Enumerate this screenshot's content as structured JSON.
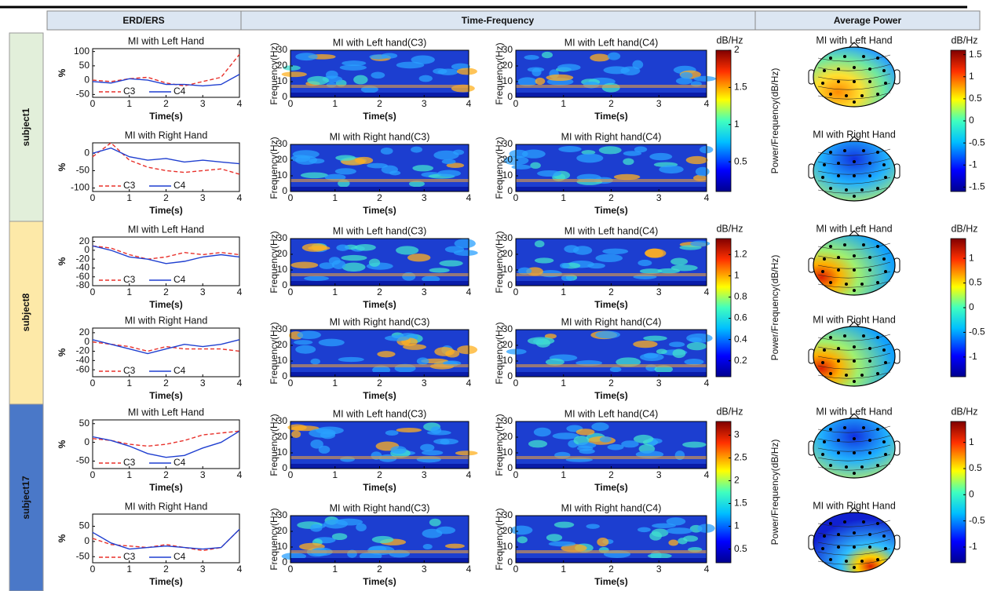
{
  "header": {
    "erd": "ERD/ERS",
    "tf": "Time-Frequency",
    "power": "Average Power"
  },
  "subjects": [
    "subject1",
    "subject8",
    "subject17"
  ],
  "chart_data": [
    {
      "type": "line",
      "title": "MI with Left Hand",
      "x": [
        0,
        0.5,
        1,
        1.5,
        2,
        2.5,
        3,
        3.5,
        4
      ],
      "xlim": [
        0,
        4
      ],
      "xticks": [
        0,
        1,
        2,
        3,
        4
      ],
      "ylim": [
        -60,
        110
      ],
      "yticks": [
        -50,
        0,
        50,
        100
      ],
      "xlabel": "Time(s)",
      "ylabel": "%",
      "series": [
        {
          "name": "C3",
          "color": "#e8302a",
          "linestyle": "dashed",
          "values": [
            0,
            -5,
            5,
            10,
            -10,
            -20,
            -5,
            10,
            90
          ]
        },
        {
          "name": "C4",
          "color": "#1f3fd0",
          "linestyle": "solid",
          "values": [
            -5,
            -10,
            5,
            0,
            -15,
            -15,
            -20,
            -15,
            20
          ]
        }
      ]
    },
    {
      "type": "heatmap",
      "title": "MI with Left hand(C3)",
      "xlim": [
        0,
        4
      ],
      "xticks": [
        0,
        1,
        2,
        3,
        4
      ],
      "ylim": [
        0,
        30
      ],
      "yticks": [
        0,
        10,
        20,
        30
      ],
      "xlabel": "Time(s)",
      "ylabel": "Frequency(Hz)"
    },
    {
      "type": "heatmap",
      "title": "MI with Left hand(C4)",
      "xlim": [
        0,
        4
      ],
      "xticks": [
        0,
        1,
        2,
        3,
        4
      ],
      "ylim": [
        0,
        30
      ],
      "yticks": [
        0,
        10,
        20,
        30
      ],
      "xlabel": "Time(s)",
      "ylabel": "Frequency(Hz)"
    },
    {
      "type": "topomap",
      "title": "MI with Left Hand"
    },
    {
      "type": "line",
      "title": "MI with Right Hand",
      "x": [
        0,
        0.5,
        1,
        1.5,
        2,
        2.5,
        3,
        3.5,
        4
      ],
      "xlim": [
        0,
        4
      ],
      "xticks": [
        0,
        1,
        2,
        3,
        4
      ],
      "ylim": [
        -110,
        30
      ],
      "yticks": [
        -100,
        -50,
        0
      ],
      "xlabel": "Time(s)",
      "ylabel": "%",
      "series": [
        {
          "name": "C3",
          "color": "#e8302a",
          "linestyle": "dashed",
          "values": [
            -10,
            30,
            -20,
            -40,
            -50,
            -55,
            -50,
            -45,
            -60
          ]
        },
        {
          "name": "C4",
          "color": "#1f3fd0",
          "linestyle": "solid",
          "values": [
            0,
            15,
            -10,
            -20,
            -15,
            -25,
            -20,
            -25,
            -30
          ]
        }
      ]
    },
    {
      "type": "heatmap",
      "title": "MI with Right hand(C3)",
      "xlim": [
        0,
        4
      ],
      "xticks": [
        0,
        1,
        2,
        3,
        4
      ],
      "ylim": [
        0,
        30
      ],
      "yticks": [
        0,
        10,
        20,
        30
      ],
      "xlabel": "Time(s)",
      "ylabel": "Frequency(Hz)"
    },
    {
      "type": "heatmap",
      "title": "MI with Right hand(C4)",
      "xlim": [
        0,
        4
      ],
      "xticks": [
        0,
        1,
        2,
        3,
        4
      ],
      "ylim": [
        0,
        30
      ],
      "yticks": [
        0,
        10,
        20,
        30
      ],
      "xlabel": "Time(s)",
      "ylabel": "Frequency(Hz)"
    },
    {
      "type": "topomap",
      "title": "MI with Right Hand"
    },
    {
      "type": "colorbar",
      "label": "dB/Hz",
      "ylabel": "Power/Frequency(dB/Hz)",
      "ylim": [
        0.1,
        2
      ],
      "yticks": [
        0.5,
        1,
        1.5,
        2
      ]
    },
    {
      "type": "colorbar",
      "label": "dB/Hz",
      "ylim": [
        -1.6,
        1.6
      ],
      "yticks": [
        -1.5,
        -1,
        -0.5,
        0,
        0.5,
        1,
        1.5
      ]
    },
    {
      "type": "line",
      "title": "MI with Left Hand",
      "x": [
        0,
        0.5,
        1,
        1.5,
        2,
        2.5,
        3,
        3.5,
        4
      ],
      "xlim": [
        0,
        4
      ],
      "xticks": [
        0,
        1,
        2,
        3,
        4
      ],
      "ylim": [
        -80,
        30
      ],
      "yticks": [
        -80,
        -60,
        -40,
        -20,
        0,
        20
      ],
      "xlabel": "Time(s)",
      "ylabel": "%",
      "series": [
        {
          "name": "C3",
          "color": "#e8302a",
          "linestyle": "dashed",
          "values": [
            10,
            5,
            -10,
            -20,
            -15,
            -5,
            -10,
            -5,
            -10
          ]
        },
        {
          "name": "C4",
          "color": "#1f3fd0",
          "linestyle": "solid",
          "values": [
            10,
            0,
            -15,
            -20,
            -30,
            -25,
            -15,
            -10,
            -15
          ]
        }
      ]
    },
    {
      "type": "heatmap",
      "title": "MI with Left hand(C3)",
      "xlim": [
        0,
        4
      ],
      "xticks": [
        0,
        1,
        2,
        3,
        4
      ],
      "ylim": [
        0,
        30
      ],
      "yticks": [
        0,
        10,
        20,
        30
      ],
      "xlabel": "Time(s)",
      "ylabel": "Frequency(Hz)"
    },
    {
      "type": "heatmap",
      "title": "MI with Left hand(C4)",
      "xlim": [
        0,
        4
      ],
      "xticks": [
        0,
        1,
        2,
        3,
        4
      ],
      "ylim": [
        0,
        30
      ],
      "yticks": [
        0,
        10,
        20,
        30
      ],
      "xlabel": "Time(s)",
      "ylabel": "Frequency(Hz)"
    },
    {
      "type": "topomap",
      "title": "MI with Left Hand"
    },
    {
      "type": "line",
      "title": "MI with Right Hand",
      "x": [
        0,
        0.5,
        1,
        1.5,
        2,
        2.5,
        3,
        3.5,
        4
      ],
      "xlim": [
        0,
        4
      ],
      "xticks": [
        0,
        1,
        2,
        3,
        4
      ],
      "ylim": [
        -75,
        30
      ],
      "yticks": [
        -60,
        -40,
        -20,
        0,
        20
      ],
      "xlabel": "Time(s)",
      "ylabel": "%",
      "series": [
        {
          "name": "C3",
          "color": "#e8302a",
          "linestyle": "dashed",
          "values": [
            0,
            -5,
            -10,
            -20,
            -10,
            -15,
            -15,
            -15,
            -20
          ]
        },
        {
          "name": "C4",
          "color": "#1f3fd0",
          "linestyle": "solid",
          "values": [
            5,
            -5,
            -15,
            -25,
            -15,
            -5,
            -10,
            -5,
            5
          ]
        }
      ]
    },
    {
      "type": "heatmap",
      "title": "MI with Right hand(C3)",
      "xlim": [
        0,
        4
      ],
      "xticks": [
        0,
        1,
        2,
        3,
        4
      ],
      "ylim": [
        0,
        30
      ],
      "yticks": [
        0,
        10,
        20,
        30
      ],
      "xlabel": "Time(s)",
      "ylabel": "Frequency(Hz)"
    },
    {
      "type": "heatmap",
      "title": "MI with Right hand(C4)",
      "xlim": [
        0,
        4
      ],
      "xticks": [
        0,
        1,
        2,
        3,
        4
      ],
      "ylim": [
        0,
        30
      ],
      "yticks": [
        0,
        10,
        20,
        30
      ],
      "xlabel": "Time(s)",
      "ylabel": "Frequency(Hz)"
    },
    {
      "type": "topomap",
      "title": "MI with Right Hand"
    },
    {
      "type": "colorbar",
      "label": "dB/Hz",
      "ylabel": "Power/Frequency(dB/Hz)",
      "ylim": [
        0.05,
        1.35
      ],
      "yticks": [
        0.2,
        0.4,
        0.6,
        0.8,
        1,
        1.2
      ]
    },
    {
      "type": "colorbar",
      "label": "dB/Hz",
      "ylim": [
        -1.4,
        1.4
      ],
      "yticks": [
        -1,
        -0.5,
        0,
        0.5,
        1
      ]
    },
    {
      "type": "line",
      "title": "MI with Left Hand",
      "x": [
        0,
        0.5,
        1,
        1.5,
        2,
        2.5,
        3,
        3.5,
        4
      ],
      "xlim": [
        0,
        4
      ],
      "xticks": [
        0,
        1,
        2,
        3,
        4
      ],
      "ylim": [
        -70,
        60
      ],
      "yticks": [
        -50,
        0,
        50
      ],
      "xlabel": "Time(s)",
      "ylabel": "%",
      "series": [
        {
          "name": "C3",
          "color": "#e8302a",
          "linestyle": "dashed",
          "values": [
            10,
            5,
            -5,
            -10,
            -5,
            5,
            20,
            25,
            30
          ]
        },
        {
          "name": "C4",
          "color": "#1f3fd0",
          "linestyle": "solid",
          "values": [
            15,
            5,
            -10,
            -30,
            -40,
            -35,
            -15,
            0,
            30
          ]
        }
      ]
    },
    {
      "type": "heatmap",
      "title": "MI with Left hand(C3)",
      "xlim": [
        0,
        4
      ],
      "xticks": [
        0,
        1,
        2,
        3,
        4
      ],
      "ylim": [
        0,
        30
      ],
      "yticks": [
        0,
        10,
        20,
        30
      ],
      "xlabel": "Time(s)",
      "ylabel": "Frequency(Hz)"
    },
    {
      "type": "heatmap",
      "title": "MI with Left hand(C4)",
      "xlim": [
        0,
        4
      ],
      "xticks": [
        0,
        1,
        2,
        3,
        4
      ],
      "ylim": [
        0,
        30
      ],
      "yticks": [
        0,
        10,
        20,
        30
      ],
      "xlabel": "Time(s)",
      "ylabel": "Frequency(Hz)"
    },
    {
      "type": "topomap",
      "title": "MI with Left Hand"
    },
    {
      "type": "line",
      "title": "MI with Right Hand",
      "x": [
        0,
        0.5,
        1,
        1.5,
        2,
        2.5,
        3,
        3.5,
        4
      ],
      "xlim": [
        0,
        4
      ],
      "xticks": [
        0,
        1,
        2,
        3,
        4
      ],
      "ylim": [
        -70,
        90
      ],
      "yticks": [
        -50,
        0,
        50
      ],
      "xlabel": "Time(s)",
      "ylabel": "%",
      "series": [
        {
          "name": "C3",
          "color": "#e8302a",
          "linestyle": "dashed",
          "values": [
            10,
            -10,
            -15,
            -20,
            -10,
            -20,
            -30,
            -20,
            40
          ]
        },
        {
          "name": "C4",
          "color": "#1f3fd0",
          "linestyle": "solid",
          "values": [
            30,
            -5,
            -25,
            -20,
            -15,
            -20,
            -25,
            -20,
            40
          ]
        }
      ]
    },
    {
      "type": "heatmap",
      "title": "MI with Right hand(C3)",
      "xlim": [
        0,
        4
      ],
      "xticks": [
        0,
        1,
        2,
        3,
        4
      ],
      "ylim": [
        0,
        30
      ],
      "yticks": [
        0,
        10,
        20,
        30
      ],
      "xlabel": "Time(s)",
      "ylabel": "Frequency(Hz)"
    },
    {
      "type": "heatmap",
      "title": "MI with Right hand(C4)",
      "xlim": [
        0,
        4
      ],
      "xticks": [
        0,
        1,
        2,
        3,
        4
      ],
      "ylim": [
        0,
        30
      ],
      "yticks": [
        0,
        10,
        20,
        30
      ],
      "xlabel": "Time(s)",
      "ylabel": "Frequency(Hz)"
    },
    {
      "type": "topomap",
      "title": "MI with Right Hand"
    },
    {
      "type": "colorbar",
      "label": "dB/Hz",
      "ylabel": "Power/Frequency(dB/Hz)",
      "ylim": [
        0.2,
        3.3
      ],
      "yticks": [
        0.5,
        1,
        1.5,
        2,
        2.5,
        3
      ]
    },
    {
      "type": "colorbar",
      "label": "dB/Hz",
      "ylim": [
        -1.3,
        1.4
      ],
      "yticks": [
        -1,
        -0.5,
        0,
        0.5,
        1
      ]
    }
  ]
}
